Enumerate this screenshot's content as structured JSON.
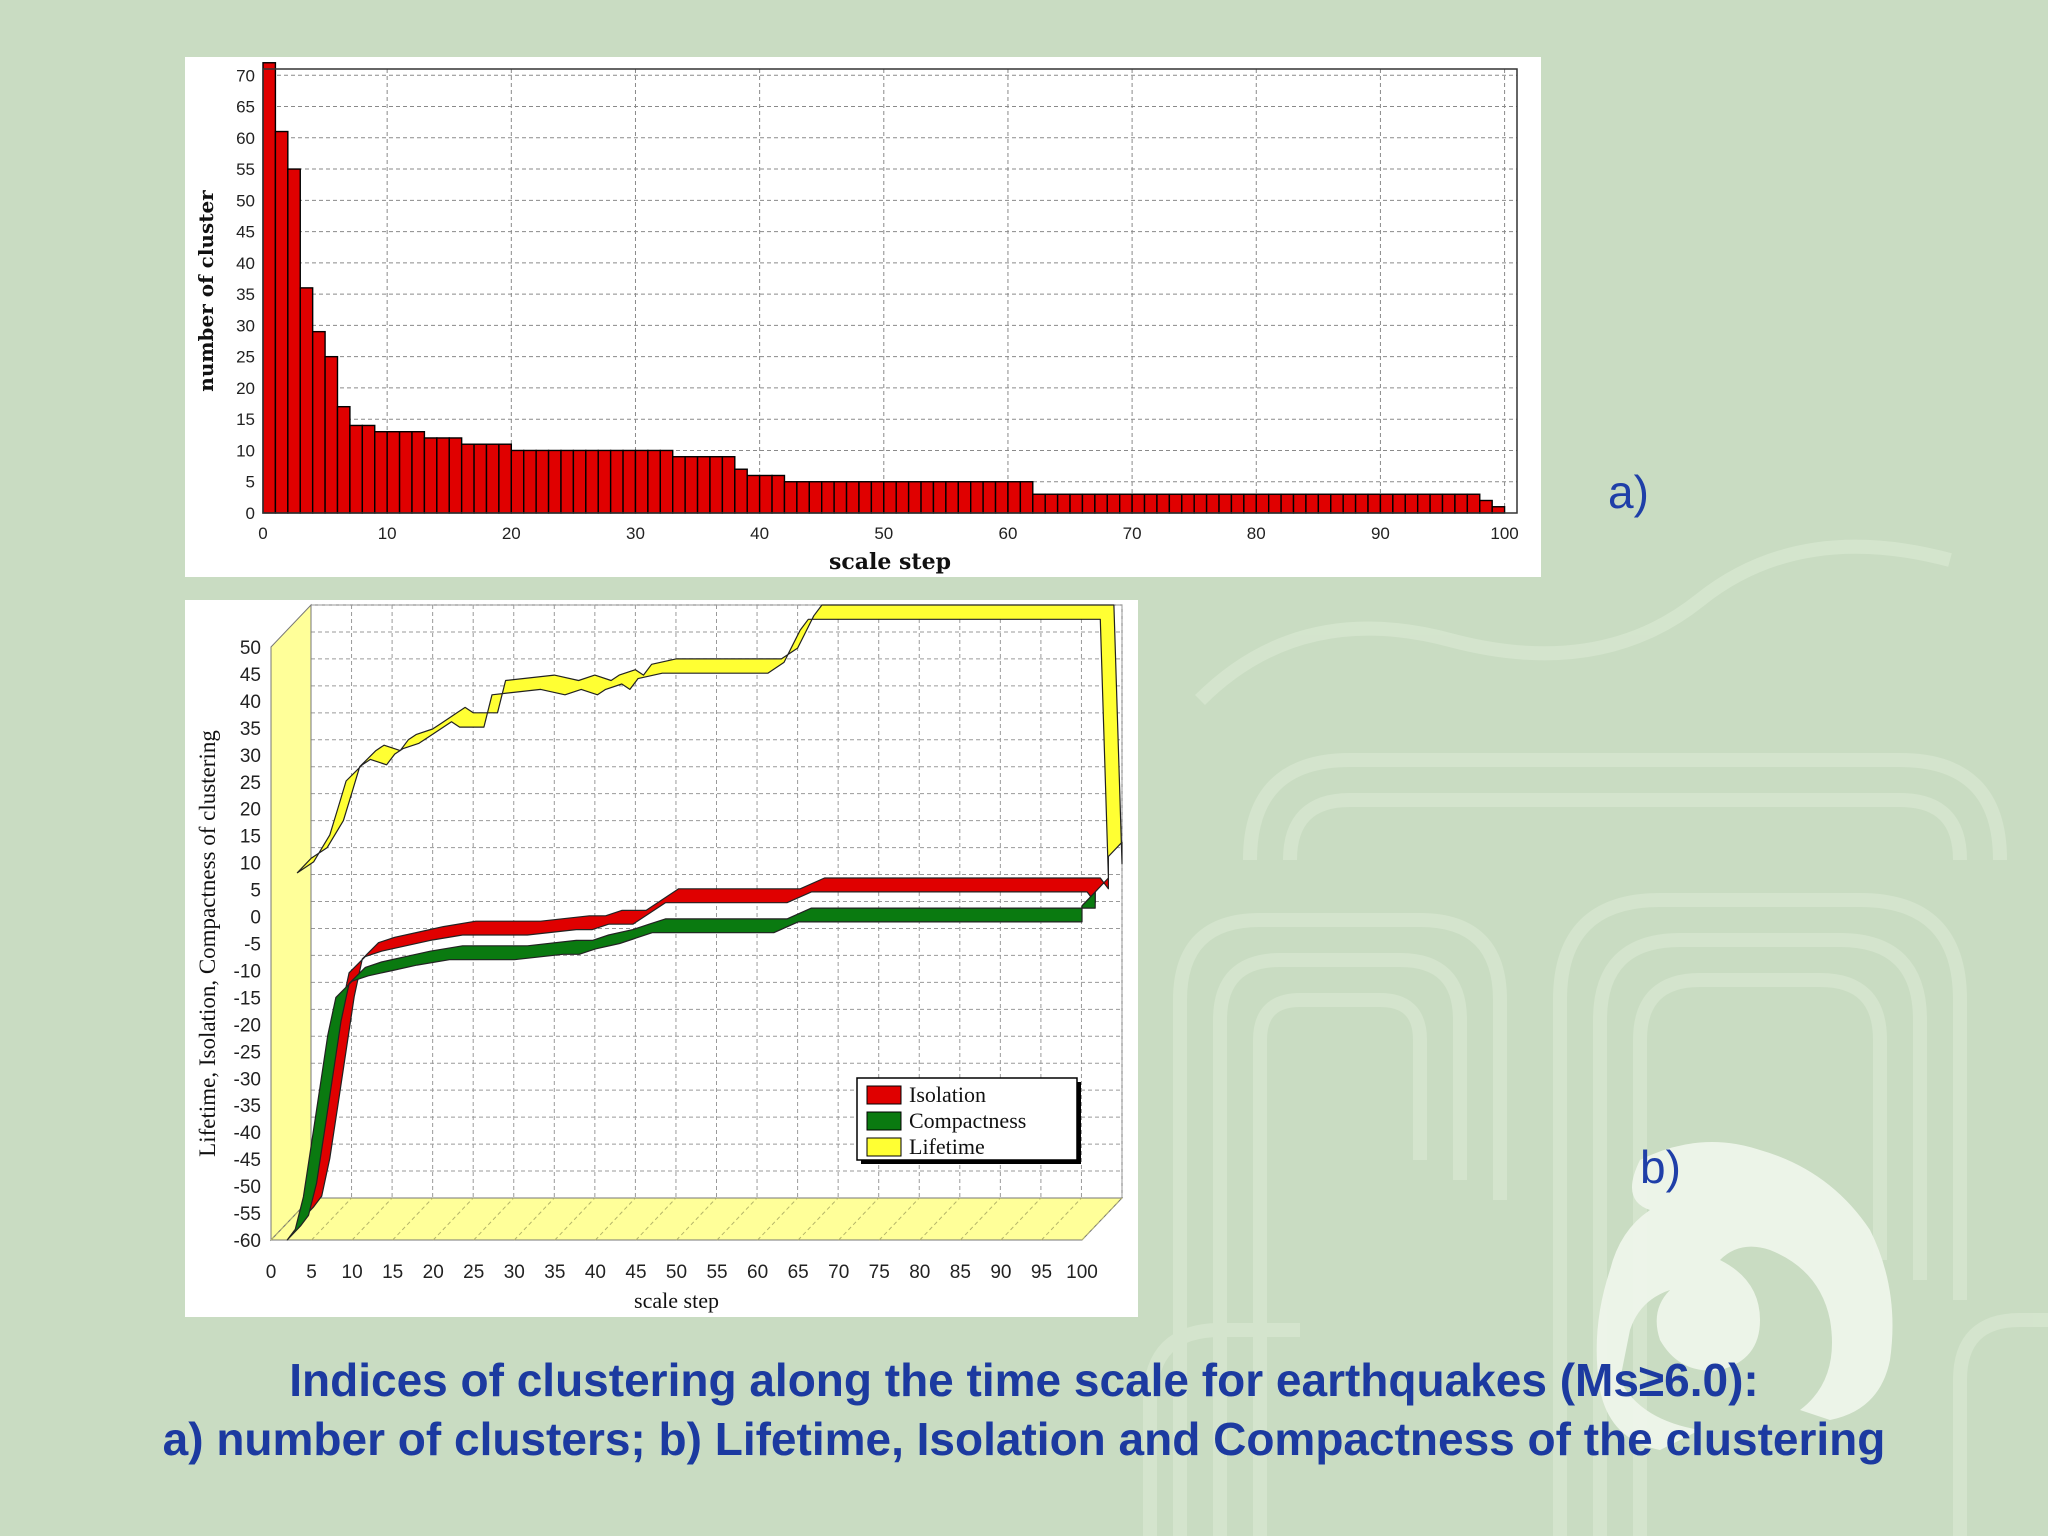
{
  "labels": {
    "panel_a": "a)",
    "panel_b": "b)"
  },
  "caption": {
    "line1": "Indices of clustering along the time scale for earthquakes (Ms≥6.0):",
    "line2": "a) number of clusters; b) Lifetime, Isolation and Compactness of the clustering"
  },
  "colors": {
    "background": "#c9dcc2",
    "text_blue": "#1c3aa0",
    "bar_red": "#e00000",
    "isolation": "#e00000",
    "compactness": "#0a7a10",
    "lifetime": "#ffff33",
    "floor_yellow": "#ffff99"
  },
  "chart_data": [
    {
      "type": "bar",
      "xlabel": "scale step",
      "ylabel": "number of cluster",
      "xlim": [
        0,
        101
      ],
      "ylim": [
        0,
        71
      ],
      "xticks": [
        "0",
        "10",
        "20",
        "30",
        "40",
        "50",
        "60",
        "70",
        "80",
        "90",
        "100"
      ],
      "yticks": [
        "0",
        "5",
        "10",
        "15",
        "20",
        "25",
        "30",
        "35",
        "40",
        "45",
        "50",
        "55",
        "60",
        "65",
        "70"
      ],
      "grid": true,
      "values": [
        72,
        61,
        55,
        36,
        29,
        25,
        17,
        14,
        14,
        13,
        13,
        13,
        13,
        12,
        12,
        12,
        11,
        11,
        11,
        11,
        10,
        10,
        10,
        10,
        10,
        10,
        10,
        10,
        10,
        10,
        10,
        10,
        10,
        9,
        9,
        9,
        9,
        9,
        7,
        6,
        6,
        6,
        5,
        5,
        5,
        5,
        5,
        5,
        5,
        5,
        5,
        5,
        5,
        5,
        5,
        5,
        5,
        5,
        5,
        5,
        5,
        5,
        3,
        3,
        3,
        3,
        3,
        3,
        3,
        3,
        3,
        3,
        3,
        3,
        3,
        3,
        3,
        3,
        3,
        3,
        3,
        3,
        3,
        3,
        3,
        3,
        3,
        3,
        3,
        3,
        3,
        3,
        3,
        3,
        3,
        3,
        3,
        3,
        2,
        1
      ]
    },
    {
      "type": "area",
      "xlabel": "scale step",
      "ylabel": "Lifetime, Isolation, Compactness of clustering",
      "xlim": [
        0,
        100
      ],
      "ylim": [
        -60,
        50
      ],
      "xticks": [
        "0",
        "5",
        "10",
        "15",
        "20",
        "25",
        "30",
        "35",
        "40",
        "45",
        "50",
        "55",
        "60",
        "65",
        "70",
        "75",
        "80",
        "85",
        "90",
        "95",
        "100"
      ],
      "yticks": [
        "50",
        "45",
        "40",
        "35",
        "30",
        "25",
        "20",
        "15",
        "10",
        "5",
        "0",
        "-5",
        "-10",
        "-15",
        "-20",
        "-25",
        "-30",
        "-35",
        "-40",
        "-45",
        "-50",
        "-55",
        "-60"
      ],
      "grid": true,
      "legend_position": "bottom-right",
      "series": [
        {
          "name": "Isolation",
          "x": [
            2,
            3,
            4,
            5,
            6,
            7,
            8,
            10,
            12,
            15,
            18,
            22,
            30,
            36,
            38,
            40,
            43,
            45,
            47,
            50,
            62,
            65,
            99,
            100,
            102
          ],
          "y": [
            -59,
            -57,
            -50,
            -40,
            -30,
            -20,
            -13,
            -10,
            -9,
            -8,
            -7,
            -6,
            -6,
            -5,
            -5,
            -4,
            -4,
            -2,
            0,
            0,
            0,
            2,
            2,
            0,
            2
          ]
        },
        {
          "name": "Compactness",
          "x": [
            2,
            3,
            4,
            5,
            6,
            7,
            8,
            10,
            12,
            15,
            18,
            22,
            30,
            36,
            38,
            40,
            43,
            45,
            47,
            50,
            62,
            65,
            99,
            100,
            102
          ],
          "y": [
            -60,
            -58,
            -52,
            -42,
            -32,
            -22,
            -15,
            -12,
            -11,
            -10,
            -9,
            -8,
            -8,
            -7,
            -7,
            -6,
            -5,
            -4,
            -3,
            -3,
            -3,
            -1,
            -1,
            -1,
            2
          ]
        },
        {
          "name": "Lifetime",
          "x": [
            0,
            2,
            4,
            5,
            6,
            8,
            9,
            11,
            12,
            13,
            15,
            16,
            18,
            19,
            20,
            23,
            24,
            30,
            33,
            35,
            37,
            38,
            40,
            41,
            42,
            45,
            50,
            58,
            60,
            61,
            62,
            63,
            65,
            70,
            80,
            90,
            98,
            99,
            100,
            102
          ],
          "y": [
            3,
            5,
            10,
            15,
            20,
            23,
            24,
            23,
            25,
            26,
            27,
            28,
            30,
            31,
            30,
            30,
            36,
            37,
            36,
            37,
            36,
            37,
            38,
            37,
            39,
            40,
            40,
            40,
            42,
            45,
            48,
            50,
            50,
            50,
            50,
            50,
            50,
            50,
            2,
            6
          ]
        }
      ]
    }
  ]
}
